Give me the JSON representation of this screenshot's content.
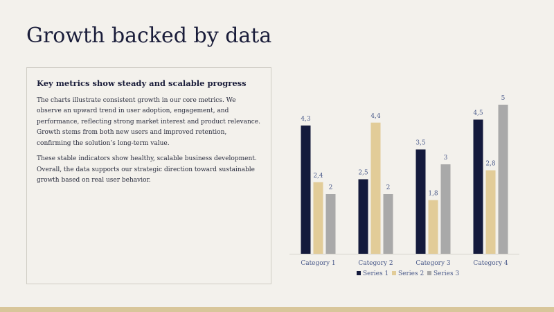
{
  "slide": {
    "title": "Growth backed by data"
  },
  "text_card": {
    "heading": "Key metrics show steady and scalable progress",
    "paragraphs": [
      "The charts illustrate consistent growth in our core metrics. We observe an upward trend in user adoption, engagement, and performance, reflecting strong market interest and product relevance. Growth stems from both new users and improved retention, confirming the solution’s long-term value.",
      "These stable indicators show healthy, scalable business development. Overall, the data supports our strategic direction toward sustainable growth based on real user behavior."
    ]
  },
  "colors": {
    "background": "#f3f1ec",
    "title_text": "#1a1d3a",
    "label_text": "#4a5a8a",
    "series_1": "#141a3c",
    "series_2": "#e2cc98",
    "series_3": "#a9a9a9",
    "accent_band": "#d8c69a"
  },
  "chart_data": {
    "type": "bar",
    "categories": [
      "Category 1",
      "Category 2",
      "Category 3",
      "Category 4"
    ],
    "series": [
      {
        "name": "Series 1",
        "values": [
          4.3,
          2.5,
          3.5,
          4.5
        ],
        "labels": [
          "4,3",
          "2,5",
          "3,5",
          "4,5"
        ]
      },
      {
        "name": "Series 2",
        "values": [
          2.4,
          4.4,
          1.8,
          2.8
        ],
        "labels": [
          "2,4",
          "4,4",
          "1,8",
          "2,8"
        ]
      },
      {
        "name": "Series 3",
        "values": [
          2,
          2,
          3,
          5
        ],
        "labels": [
          "2",
          "2",
          "3",
          "5"
        ]
      }
    ],
    "ylim": [
      0,
      5
    ],
    "grid": false,
    "data_labels": true,
    "legend_position": "bottom"
  }
}
